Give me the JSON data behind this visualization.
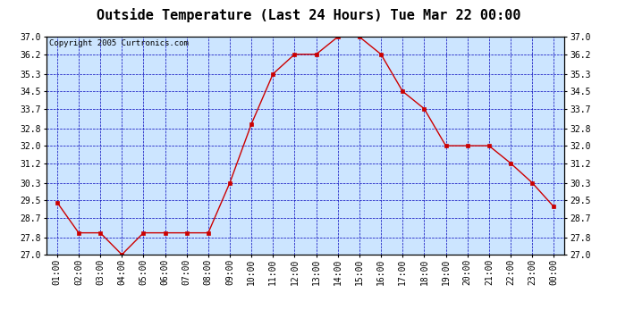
{
  "title": "Outside Temperature (Last 24 Hours) Tue Mar 22 00:00",
  "copyright": "Copyright 2005 Curtronics.com",
  "x_labels": [
    "01:00",
    "02:00",
    "03:00",
    "04:00",
    "05:00",
    "06:00",
    "07:00",
    "08:00",
    "09:00",
    "10:00",
    "11:00",
    "12:00",
    "13:00",
    "14:00",
    "15:00",
    "16:00",
    "17:00",
    "18:00",
    "19:00",
    "20:00",
    "21:00",
    "22:00",
    "23:00",
    "00:00"
  ],
  "y_values": [
    29.4,
    28.0,
    28.0,
    27.0,
    28.0,
    28.0,
    28.0,
    28.0,
    30.3,
    33.0,
    35.3,
    36.2,
    36.2,
    37.0,
    37.0,
    36.2,
    34.5,
    33.7,
    32.0,
    32.0,
    32.0,
    31.2,
    30.3,
    29.2
  ],
  "y_ticks": [
    27.0,
    27.8,
    28.7,
    29.5,
    30.3,
    31.2,
    32.0,
    32.8,
    33.7,
    34.5,
    35.3,
    36.2,
    37.0
  ],
  "ylim": [
    27.0,
    37.0
  ],
  "line_color": "#cc0000",
  "marker_color": "#cc0000",
  "bg_color": "#cce5ff",
  "grid_color": "#0000bb",
  "border_color": "#000000",
  "title_fontsize": 11,
  "copyright_fontsize": 6.5,
  "tick_fontsize": 7.0,
  "fig_width": 6.9,
  "fig_height": 3.75
}
